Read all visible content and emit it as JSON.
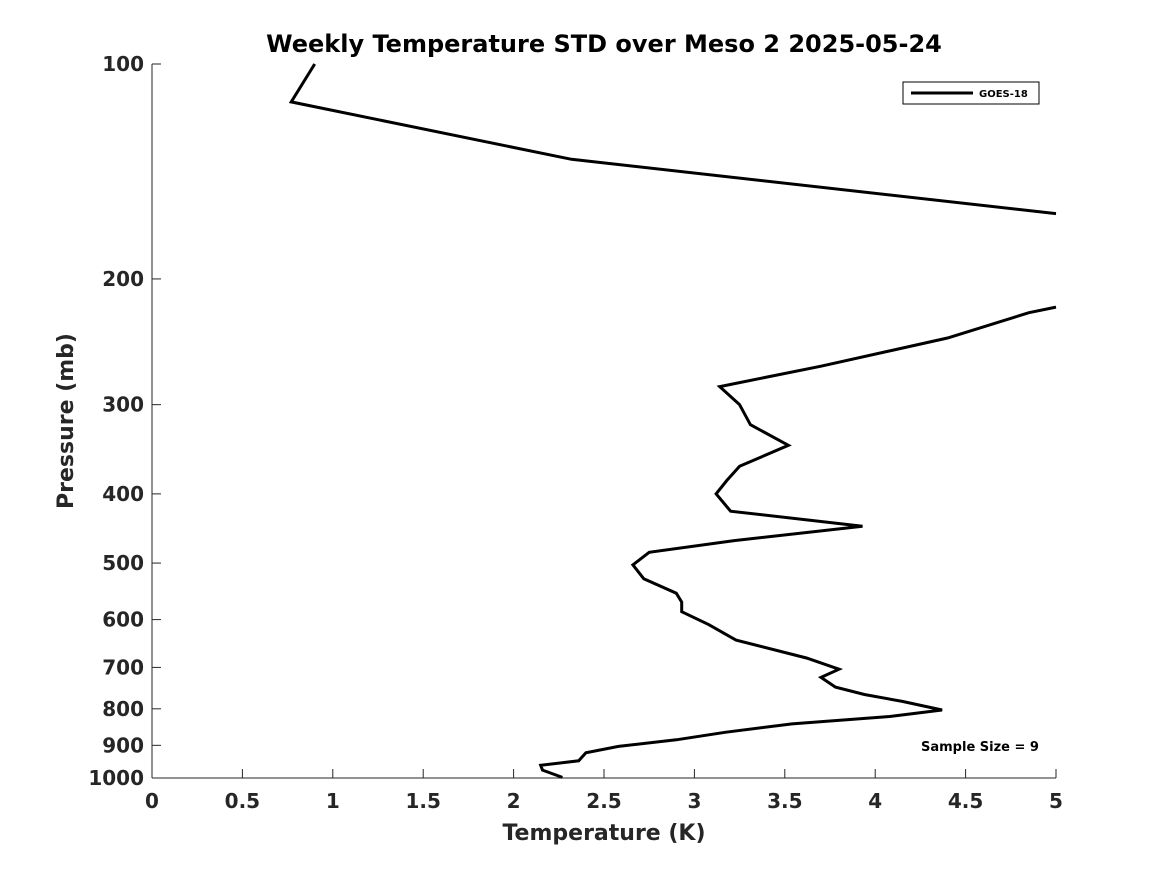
{
  "chart_data": {
    "type": "line",
    "title": "Weekly Temperature STD over Meso 2 2025-05-24",
    "xlabel": "Temperature (K)",
    "ylabel": "Pressure (mb)",
    "xlim": [
      0,
      5
    ],
    "ylim": [
      100,
      1000
    ],
    "y_scale": "log",
    "y_reversed": true,
    "grid": false,
    "legend_position": "top-right",
    "x_ticks": [
      0,
      0.5,
      1,
      1.5,
      2,
      2.5,
      3,
      3.5,
      4,
      4.5,
      5
    ],
    "x_tick_labels": [
      "0",
      "0.5",
      "1",
      "1.5",
      "2",
      "2.5",
      "3",
      "3.5",
      "4",
      "4.5",
      "5"
    ],
    "y_ticks": [
      100,
      200,
      300,
      400,
      500,
      600,
      700,
      800,
      900,
      1000
    ],
    "y_tick_labels": [
      "100",
      "200",
      "300",
      "400",
      "500",
      "600",
      "700",
      "800",
      "900",
      "1000"
    ],
    "series": [
      {
        "name": "GOES-18",
        "color": "#000000",
        "segments": [
          [
            [
              0.9,
              100
            ],
            [
              0.77,
              113
            ],
            [
              2.32,
              136
            ],
            [
              5.0,
              162
            ]
          ],
          [
            [
              5.0,
              219
            ],
            [
              4.85,
              223
            ],
            [
              4.4,
              242
            ],
            [
              3.7,
              265
            ],
            [
              3.14,
              283
            ],
            [
              3.25,
              300
            ],
            [
              3.31,
              320
            ],
            [
              3.52,
              342
            ],
            [
              3.25,
              366
            ],
            [
              3.18,
              383
            ],
            [
              3.12,
              400
            ],
            [
              3.2,
              423
            ],
            [
              3.93,
              444
            ],
            [
              3.22,
              465
            ],
            [
              2.75,
              483
            ],
            [
              2.66,
              503
            ],
            [
              2.72,
              526
            ],
            [
              2.9,
              551
            ],
            [
              2.93,
              567
            ],
            [
              2.93,
              585
            ],
            [
              3.08,
              610
            ],
            [
              3.23,
              641
            ],
            [
              3.62,
              679
            ],
            [
              3.8,
              704
            ],
            [
              3.7,
              723
            ],
            [
              3.78,
              746
            ],
            [
              3.94,
              764
            ],
            [
              4.15,
              781
            ],
            [
              4.37,
              803
            ],
            [
              4.08,
              820
            ],
            [
              3.54,
              840
            ],
            [
              3.17,
              863
            ],
            [
              2.9,
              884
            ],
            [
              2.58,
              903
            ],
            [
              2.4,
              922
            ],
            [
              2.36,
              946
            ],
            [
              2.15,
              960
            ],
            [
              2.16,
              975
            ],
            [
              2.27,
              998
            ]
          ]
        ]
      }
    ],
    "annotations": [
      "Sample Size = 9"
    ]
  }
}
